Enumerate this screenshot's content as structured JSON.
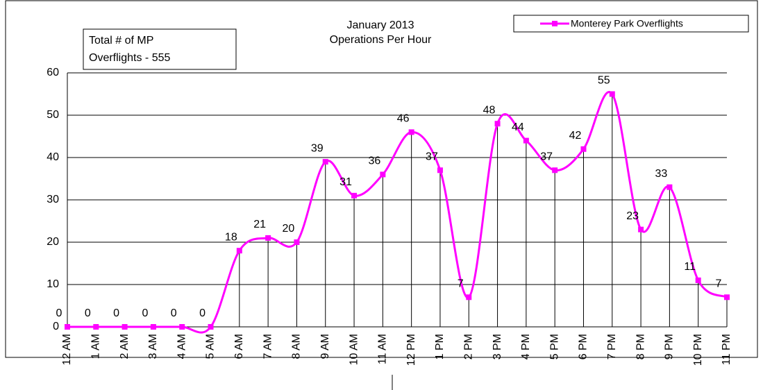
{
  "chart_data": {
    "type": "line",
    "title": [
      "January 2013",
      "Operations Per Hour"
    ],
    "annotation": [
      "Total # of MP",
      "Overflights - 555"
    ],
    "categories": [
      "12 AM",
      "1 AM",
      "2 AM",
      "3 AM",
      "4 AM",
      "5 AM",
      "6 AM",
      "7 AM",
      "8 AM",
      "9 AM",
      "10 AM",
      "11 AM",
      "12 PM",
      "1 PM",
      "2 PM",
      "3 PM",
      "4 PM",
      "5 PM",
      "6 PM",
      "7 PM",
      "8 PM",
      "9 PM",
      "10 PM",
      "11 PM"
    ],
    "series": [
      {
        "name": "Monterey Park Overflights",
        "color": "#ff00ff",
        "values": [
          0,
          0,
          0,
          0,
          0,
          0,
          18,
          21,
          20,
          39,
          31,
          36,
          46,
          37,
          7,
          48,
          44,
          37,
          42,
          55,
          23,
          33,
          11,
          7
        ]
      }
    ],
    "ylim": [
      0,
      60
    ],
    "yticks": [
      0,
      10,
      20,
      30,
      40,
      50,
      60
    ],
    "grid": true,
    "legend": "top-right",
    "smooth": true
  }
}
